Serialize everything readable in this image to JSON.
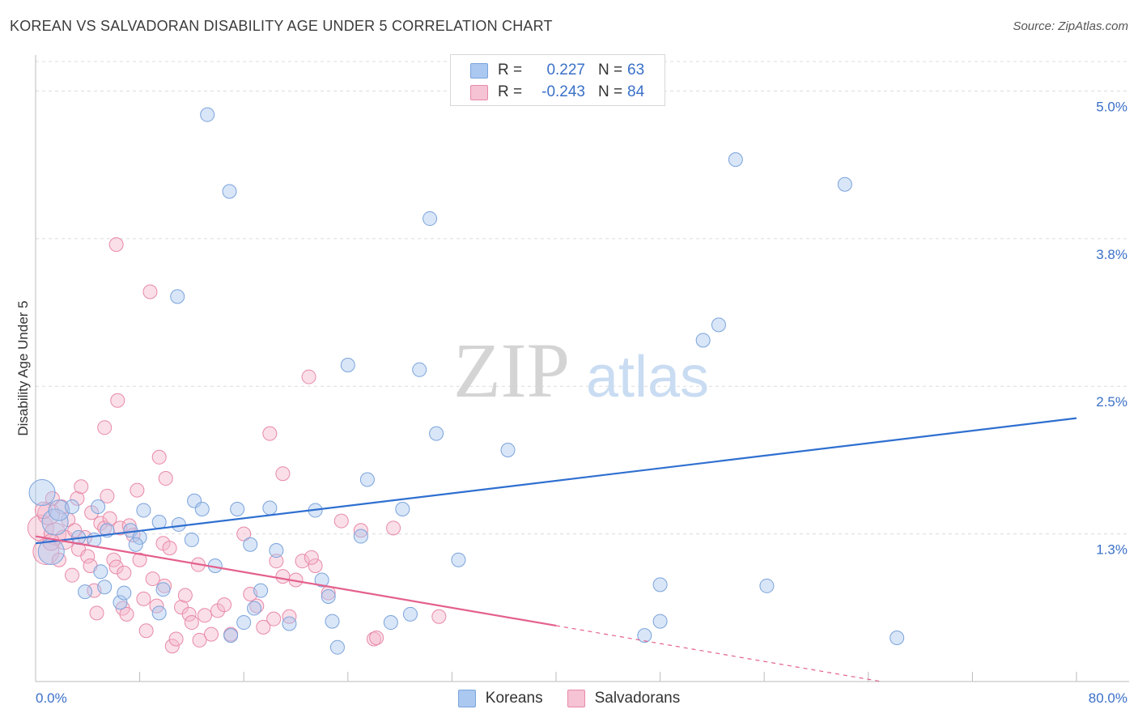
{
  "title": "KOREAN VS SALVADORAN DISABILITY AGE UNDER 5 CORRELATION CHART",
  "source": "Source: ZipAtlas.com",
  "watermark": {
    "zip": "ZIP",
    "atlas": "atlas"
  },
  "legend": {
    "koreans": {
      "r_label": "R =",
      "r_value": "0.227",
      "n_label": "N =",
      "n_value": "63"
    },
    "salvadorans": {
      "r_label": "R =",
      "r_value": "-0.243",
      "n_label": "N =",
      "n_value": "84"
    }
  },
  "bottom_legend": {
    "koreans": "Koreans",
    "salvadorans": "Salvadorans"
  },
  "colors": {
    "koreans_fill": "#aac8f0",
    "koreans_stroke": "#7aa3db",
    "koreans_line": "#2f6fd0",
    "salvadorans_fill": "#f5b8cc",
    "salvadorans_stroke": "#e889a8",
    "salvadorans_line": "#e4608c",
    "grid": "#dcdcdc",
    "tick_label": "#3a70c8"
  },
  "chart_data": {
    "type": "scatter",
    "title": "KOREAN VS SALVADORAN DISABILITY AGE UNDER 5 CORRELATION CHART",
    "xlabel": "",
    "ylabel": "Disability Age Under 5",
    "xlim": [
      0,
      80
    ],
    "ylim": [
      0,
      5.25
    ],
    "x_tick_labels": {
      "min": "0.0%",
      "max": "80.0%"
    },
    "y_ticks": [
      {
        "value": 1.25,
        "label": "1.3%"
      },
      {
        "value": 2.5,
        "label": "2.5%"
      },
      {
        "value": 3.75,
        "label": "3.8%"
      },
      {
        "value": 5.0,
        "label": "5.0%"
      }
    ],
    "series": [
      {
        "name": "Koreans",
        "r": 0.227,
        "n": 63,
        "trend": {
          "x": [
            0,
            80
          ],
          "y": [
            1.17,
            2.23
          ],
          "dashed_from": null
        },
        "points": [
          {
            "x": 0.5,
            "y": 1.6,
            "s": 3
          },
          {
            "x": 1.5,
            "y": 1.35,
            "s": 2
          },
          {
            "x": 1.8,
            "y": 1.45,
            "s": 1.5
          },
          {
            "x": 1.2,
            "y": 1.1,
            "s": 2
          },
          {
            "x": 2.8,
            "y": 1.48,
            "s": 1
          },
          {
            "x": 3.3,
            "y": 1.22,
            "s": 1
          },
          {
            "x": 4.5,
            "y": 1.2,
            "s": 1
          },
          {
            "x": 5.5,
            "y": 1.28,
            "s": 1
          },
          {
            "x": 5.0,
            "y": 0.93,
            "s": 1
          },
          {
            "x": 3.8,
            "y": 0.76,
            "s": 1
          },
          {
            "x": 5.3,
            "y": 0.8,
            "s": 1
          },
          {
            "x": 6.5,
            "y": 0.67,
            "s": 1
          },
          {
            "x": 6.8,
            "y": 0.75,
            "s": 1
          },
          {
            "x": 7.3,
            "y": 1.28,
            "s": 1
          },
          {
            "x": 8.0,
            "y": 1.22,
            "s": 1
          },
          {
            "x": 8.3,
            "y": 1.45,
            "s": 1
          },
          {
            "x": 7.7,
            "y": 1.16,
            "s": 1
          },
          {
            "x": 9.5,
            "y": 1.35,
            "s": 1
          },
          {
            "x": 9.8,
            "y": 0.78,
            "s": 1
          },
          {
            "x": 9.5,
            "y": 0.58,
            "s": 1
          },
          {
            "x": 11.0,
            "y": 1.33,
            "s": 1
          },
          {
            "x": 12.0,
            "y": 1.2,
            "s": 1
          },
          {
            "x": 12.2,
            "y": 1.53,
            "s": 1
          },
          {
            "x": 12.8,
            "y": 1.46,
            "s": 1
          },
          {
            "x": 13.8,
            "y": 0.98,
            "s": 1
          },
          {
            "x": 15.0,
            "y": 0.39,
            "s": 1
          },
          {
            "x": 15.5,
            "y": 1.46,
            "s": 1
          },
          {
            "x": 16.0,
            "y": 0.5,
            "s": 1
          },
          {
            "x": 16.5,
            "y": 1.16,
            "s": 1
          },
          {
            "x": 16.8,
            "y": 0.62,
            "s": 1
          },
          {
            "x": 17.3,
            "y": 0.77,
            "s": 1
          },
          {
            "x": 18.0,
            "y": 1.47,
            "s": 1
          },
          {
            "x": 18.5,
            "y": 1.11,
            "s": 1
          },
          {
            "x": 19.5,
            "y": 0.49,
            "s": 1
          },
          {
            "x": 21.5,
            "y": 1.45,
            "s": 1
          },
          {
            "x": 22.0,
            "y": 0.86,
            "s": 1
          },
          {
            "x": 22.5,
            "y": 0.72,
            "s": 1
          },
          {
            "x": 22.8,
            "y": 0.51,
            "s": 1
          },
          {
            "x": 23.2,
            "y": 0.29,
            "s": 1
          },
          {
            "x": 25.0,
            "y": 1.23,
            "s": 1
          },
          {
            "x": 24.0,
            "y": 2.68,
            "s": 1
          },
          {
            "x": 25.5,
            "y": 1.71,
            "s": 1
          },
          {
            "x": 27.3,
            "y": 0.5,
            "s": 1
          },
          {
            "x": 28.2,
            "y": 1.46,
            "s": 1
          },
          {
            "x": 28.8,
            "y": 0.57,
            "s": 1
          },
          {
            "x": 29.5,
            "y": 2.64,
            "s": 1
          },
          {
            "x": 30.3,
            "y": 3.92,
            "s": 1
          },
          {
            "x": 30.8,
            "y": 2.1,
            "s": 1
          },
          {
            "x": 32.5,
            "y": 1.03,
            "s": 1
          },
          {
            "x": 36.3,
            "y": 1.96,
            "s": 1
          },
          {
            "x": 13.2,
            "y": 4.8,
            "s": 1
          },
          {
            "x": 14.9,
            "y": 4.15,
            "s": 1
          },
          {
            "x": 10.9,
            "y": 3.26,
            "s": 1
          },
          {
            "x": 46.8,
            "y": 0.39,
            "s": 1
          },
          {
            "x": 48.0,
            "y": 0.51,
            "s": 1
          },
          {
            "x": 48.0,
            "y": 0.82,
            "s": 1
          },
          {
            "x": 51.3,
            "y": 2.89,
            "s": 1
          },
          {
            "x": 52.5,
            "y": 3.02,
            "s": 1
          },
          {
            "x": 53.8,
            "y": 4.42,
            "s": 1
          },
          {
            "x": 56.2,
            "y": 0.81,
            "s": 1
          },
          {
            "x": 62.2,
            "y": 4.21,
            "s": 1
          },
          {
            "x": 66.2,
            "y": 0.37,
            "s": 1
          },
          {
            "x": 4.8,
            "y": 1.48,
            "s": 1
          }
        ]
      },
      {
        "name": "Salvadorans",
        "r": -0.243,
        "n": 84,
        "trend": {
          "x": [
            0,
            65
          ],
          "y": [
            1.23,
            0
          ],
          "dashed_from": 40
        },
        "points": [
          {
            "x": 0.4,
            "y": 1.3,
            "s": 2.2
          },
          {
            "x": 0.8,
            "y": 1.1,
            "s": 2
          },
          {
            "x": 1.0,
            "y": 1.42,
            "s": 1.6
          },
          {
            "x": 1.5,
            "y": 1.25,
            "s": 1.6
          },
          {
            "x": 1.3,
            "y": 1.55,
            "s": 1
          },
          {
            "x": 1.8,
            "y": 1.03,
            "s": 1
          },
          {
            "x": 2.2,
            "y": 1.2,
            "s": 1.4
          },
          {
            "x": 2.5,
            "y": 1.37,
            "s": 1
          },
          {
            "x": 2.8,
            "y": 0.9,
            "s": 1
          },
          {
            "x": 3.2,
            "y": 1.55,
            "s": 1
          },
          {
            "x": 3.5,
            "y": 1.65,
            "s": 1
          },
          {
            "x": 3.3,
            "y": 1.12,
            "s": 1
          },
          {
            "x": 3.8,
            "y": 1.22,
            "s": 1
          },
          {
            "x": 4.0,
            "y": 1.06,
            "s": 1
          },
          {
            "x": 4.3,
            "y": 1.43,
            "s": 1
          },
          {
            "x": 4.2,
            "y": 0.98,
            "s": 1
          },
          {
            "x": 4.5,
            "y": 0.77,
            "s": 1
          },
          {
            "x": 4.7,
            "y": 0.58,
            "s": 1
          },
          {
            "x": 5.0,
            "y": 1.34,
            "s": 1
          },
          {
            "x": 5.3,
            "y": 1.3,
            "s": 1
          },
          {
            "x": 5.5,
            "y": 1.57,
            "s": 1
          },
          {
            "x": 5.3,
            "y": 2.15,
            "s": 1
          },
          {
            "x": 5.7,
            "y": 1.38,
            "s": 1
          },
          {
            "x": 6.0,
            "y": 1.03,
            "s": 1
          },
          {
            "x": 6.2,
            "y": 0.97,
            "s": 1
          },
          {
            "x": 6.5,
            "y": 1.3,
            "s": 1
          },
          {
            "x": 6.8,
            "y": 0.92,
            "s": 1
          },
          {
            "x": 6.7,
            "y": 0.62,
            "s": 1
          },
          {
            "x": 7.2,
            "y": 1.32,
            "s": 1
          },
          {
            "x": 7.5,
            "y": 1.24,
            "s": 1
          },
          {
            "x": 7.8,
            "y": 1.62,
            "s": 1
          },
          {
            "x": 8.0,
            "y": 1.03,
            "s": 1
          },
          {
            "x": 8.3,
            "y": 0.7,
            "s": 1
          },
          {
            "x": 8.5,
            "y": 0.43,
            "s": 1
          },
          {
            "x": 9.0,
            "y": 0.87,
            "s": 1
          },
          {
            "x": 9.3,
            "y": 0.64,
            "s": 1
          },
          {
            "x": 9.8,
            "y": 1.17,
            "s": 1
          },
          {
            "x": 10.0,
            "y": 1.72,
            "s": 1
          },
          {
            "x": 10.3,
            "y": 1.13,
            "s": 1
          },
          {
            "x": 10.5,
            "y": 0.3,
            "s": 1
          },
          {
            "x": 10.8,
            "y": 0.36,
            "s": 1
          },
          {
            "x": 11.2,
            "y": 0.63,
            "s": 1
          },
          {
            "x": 11.5,
            "y": 0.73,
            "s": 1
          },
          {
            "x": 11.8,
            "y": 0.57,
            "s": 1
          },
          {
            "x": 12.0,
            "y": 0.5,
            "s": 1
          },
          {
            "x": 12.5,
            "y": 0.99,
            "s": 1
          },
          {
            "x": 13.0,
            "y": 0.56,
            "s": 1
          },
          {
            "x": 13.5,
            "y": 0.4,
            "s": 1
          },
          {
            "x": 14.0,
            "y": 0.6,
            "s": 1
          },
          {
            "x": 15.0,
            "y": 0.4,
            "s": 1
          },
          {
            "x": 16.0,
            "y": 1.25,
            "s": 1
          },
          {
            "x": 16.5,
            "y": 0.74,
            "s": 1
          },
          {
            "x": 17.0,
            "y": 0.64,
            "s": 1
          },
          {
            "x": 17.5,
            "y": 0.46,
            "s": 1
          },
          {
            "x": 18.3,
            "y": 0.53,
            "s": 1
          },
          {
            "x": 18.5,
            "y": 1.02,
            "s": 1
          },
          {
            "x": 19.0,
            "y": 0.89,
            "s": 1
          },
          {
            "x": 19.5,
            "y": 0.55,
            "s": 1
          },
          {
            "x": 20.5,
            "y": 1.02,
            "s": 1
          },
          {
            "x": 21.5,
            "y": 0.98,
            "s": 1
          },
          {
            "x": 22.5,
            "y": 0.75,
            "s": 1
          },
          {
            "x": 20.0,
            "y": 0.86,
            "s": 1
          },
          {
            "x": 23.5,
            "y": 1.36,
            "s": 1
          },
          {
            "x": 25.0,
            "y": 1.28,
            "s": 1
          },
          {
            "x": 26.0,
            "y": 0.36,
            "s": 1
          },
          {
            "x": 27.5,
            "y": 1.3,
            "s": 1
          },
          {
            "x": 31.0,
            "y": 0.55,
            "s": 1
          },
          {
            "x": 6.2,
            "y": 3.7,
            "s": 1
          },
          {
            "x": 8.8,
            "y": 3.3,
            "s": 1
          },
          {
            "x": 6.3,
            "y": 2.38,
            "s": 1
          },
          {
            "x": 9.5,
            "y": 1.9,
            "s": 1
          },
          {
            "x": 21.0,
            "y": 2.58,
            "s": 1
          },
          {
            "x": 18.0,
            "y": 2.1,
            "s": 1
          },
          {
            "x": 19.0,
            "y": 1.76,
            "s": 1
          },
          {
            "x": 2.0,
            "y": 1.48,
            "s": 1
          },
          {
            "x": 3.0,
            "y": 1.28,
            "s": 1
          },
          {
            "x": 0.6,
            "y": 1.45,
            "s": 1.2
          },
          {
            "x": 1.2,
            "y": 1.18,
            "s": 1.2
          },
          {
            "x": 14.5,
            "y": 0.65,
            "s": 1
          },
          {
            "x": 21.2,
            "y": 1.05,
            "s": 1
          },
          {
            "x": 26.2,
            "y": 0.37,
            "s": 1
          },
          {
            "x": 12.6,
            "y": 0.35,
            "s": 1
          },
          {
            "x": 7.0,
            "y": 0.57,
            "s": 1
          },
          {
            "x": 9.9,
            "y": 0.81,
            "s": 1
          }
        ]
      }
    ]
  }
}
